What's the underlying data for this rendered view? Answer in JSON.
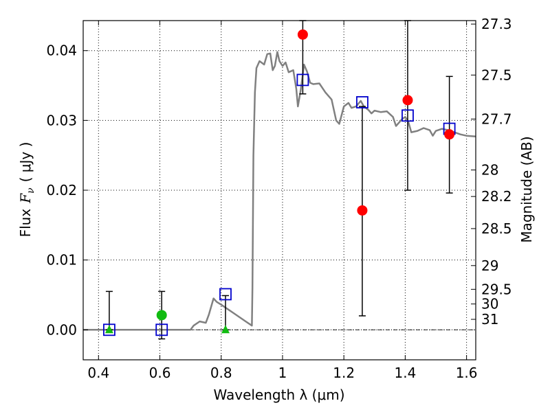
{
  "chart_data": {
    "type": "scatter",
    "xlabel": "Wavelength  λ (μm)",
    "ylabel_left": {
      "prefix": "Flux",
      "symbol": "F",
      "subscript": "ν",
      "units": "( μJy )"
    },
    "ylabel_right": "Magnitude (AB)",
    "xlim": [
      0.35,
      1.63
    ],
    "ylim": [
      -0.0043,
      0.0443
    ],
    "x_ticks": [
      0.4,
      0.6,
      0.8,
      1.0,
      1.2,
      1.4,
      1.6
    ],
    "x_tick_labels": [
      "0.4",
      "0.6",
      "0.8",
      "1",
      "1.2",
      "1.4",
      "1.6"
    ],
    "y_ticks": [
      0.0,
      0.01,
      0.02,
      0.03,
      0.04
    ],
    "y_tick_labels": [
      "0.00",
      "0.01",
      "0.02",
      "0.03",
      "0.04"
    ],
    "mag_ticks": [
      {
        "label": "27.3",
        "flux": 0.0438
      },
      {
        "label": "27.5",
        "flux": 0.0365
      },
      {
        "label": "27.7",
        "flux": 0.0302
      },
      {
        "label": "28",
        "flux": 0.0229
      },
      {
        "label": "28.2",
        "flux": 0.0191
      },
      {
        "label": "28.5",
        "flux": 0.0145
      },
      {
        "label": "29",
        "flux": 0.0092
      },
      {
        "label": "29.5",
        "flux": 0.0058
      },
      {
        "label": "30",
        "flux": 0.0037
      },
      {
        "label": "31",
        "flux": 0.0015
      }
    ],
    "grid": true,
    "zero_line": true,
    "series": [
      {
        "kind": "model_sed_line",
        "color": "#808080",
        "points": [
          [
            0.35,
            0.0
          ],
          [
            0.7,
            0.0
          ],
          [
            0.71,
            0.0006
          ],
          [
            0.73,
            0.0012
          ],
          [
            0.75,
            0.001
          ],
          [
            0.76,
            0.0022
          ],
          [
            0.775,
            0.0045
          ],
          [
            0.785,
            0.004
          ],
          [
            0.8,
            0.0036
          ],
          [
            0.82,
            0.003
          ],
          [
            0.84,
            0.0024
          ],
          [
            0.86,
            0.0018
          ],
          [
            0.88,
            0.0012
          ],
          [
            0.9,
            0.0006
          ],
          [
            0.902,
            0.006
          ],
          [
            0.905,
            0.025
          ],
          [
            0.91,
            0.034
          ],
          [
            0.915,
            0.0375
          ],
          [
            0.925,
            0.0385
          ],
          [
            0.94,
            0.038
          ],
          [
            0.95,
            0.0395
          ],
          [
            0.96,
            0.0396
          ],
          [
            0.968,
            0.0372
          ],
          [
            0.975,
            0.0378
          ],
          [
            0.983,
            0.0398
          ],
          [
            0.99,
            0.0385
          ],
          [
            1.0,
            0.0378
          ],
          [
            1.01,
            0.0383
          ],
          [
            1.02,
            0.0369
          ],
          [
            1.035,
            0.0372
          ],
          [
            1.045,
            0.0345
          ],
          [
            1.05,
            0.032
          ],
          [
            1.06,
            0.0345
          ],
          [
            1.07,
            0.038
          ],
          [
            1.08,
            0.037
          ],
          [
            1.09,
            0.0354
          ],
          [
            1.1,
            0.0352
          ],
          [
            1.12,
            0.0353
          ],
          [
            1.14,
            0.034
          ],
          [
            1.16,
            0.033
          ],
          [
            1.175,
            0.03
          ],
          [
            1.185,
            0.0295
          ],
          [
            1.2,
            0.032
          ],
          [
            1.215,
            0.0325
          ],
          [
            1.225,
            0.0318
          ],
          [
            1.24,
            0.032
          ],
          [
            1.255,
            0.0328
          ],
          [
            1.265,
            0.032
          ],
          [
            1.28,
            0.0315
          ],
          [
            1.29,
            0.031
          ],
          [
            1.3,
            0.0314
          ],
          [
            1.32,
            0.0312
          ],
          [
            1.34,
            0.0313
          ],
          [
            1.36,
            0.0305
          ],
          [
            1.37,
            0.0292
          ],
          [
            1.38,
            0.0297
          ],
          [
            1.39,
            0.0302
          ],
          [
            1.4,
            0.0305
          ],
          [
            1.41,
            0.0298
          ],
          [
            1.42,
            0.0283
          ],
          [
            1.44,
            0.0285
          ],
          [
            1.46,
            0.0289
          ],
          [
            1.48,
            0.0286
          ],
          [
            1.49,
            0.0278
          ],
          [
            1.5,
            0.0285
          ],
          [
            1.52,
            0.0288
          ],
          [
            1.54,
            0.0286
          ],
          [
            1.56,
            0.0283
          ],
          [
            1.58,
            0.028
          ],
          [
            1.6,
            0.0278
          ],
          [
            1.63,
            0.0277
          ]
        ]
      },
      {
        "kind": "model_band_flux_squares",
        "color": "#0000cc",
        "points": [
          [
            0.435,
            0.0
          ],
          [
            0.606,
            0.0
          ],
          [
            0.814,
            0.0051
          ],
          [
            1.066,
            0.0358
          ],
          [
            1.26,
            0.0326
          ],
          [
            1.408,
            0.0307
          ],
          [
            1.544,
            0.0288
          ]
        ]
      },
      {
        "kind": "detections_red",
        "color": "#ff0000",
        "points": [
          {
            "x": 1.066,
            "y": 0.0423,
            "err_lo": 0.0338,
            "err_hi": 0.0443
          },
          {
            "x": 1.26,
            "y": 0.0171,
            "err_lo": 0.002,
            "err_hi": 0.032
          },
          {
            "x": 1.408,
            "y": 0.0329,
            "err_lo": 0.02,
            "err_hi": 0.0443
          },
          {
            "x": 1.544,
            "y": 0.028,
            "err_lo": 0.0196,
            "err_hi": 0.0363
          }
        ]
      },
      {
        "kind": "detection_green",
        "color": "#11bb11",
        "points": [
          {
            "x": 0.606,
            "y": 0.0021,
            "err_lo": -0.0013,
            "err_hi": 0.0055
          }
        ]
      },
      {
        "kind": "upper_limits_green_triangles",
        "color": "#11bb11",
        "points": [
          {
            "x": 0.435,
            "y": 0.0,
            "err_lo": 0.0,
            "err_hi": 0.0055
          },
          {
            "x": 0.814,
            "y": 0.0,
            "err_lo": 0.0,
            "err_hi": 0.0049
          }
        ]
      }
    ]
  }
}
